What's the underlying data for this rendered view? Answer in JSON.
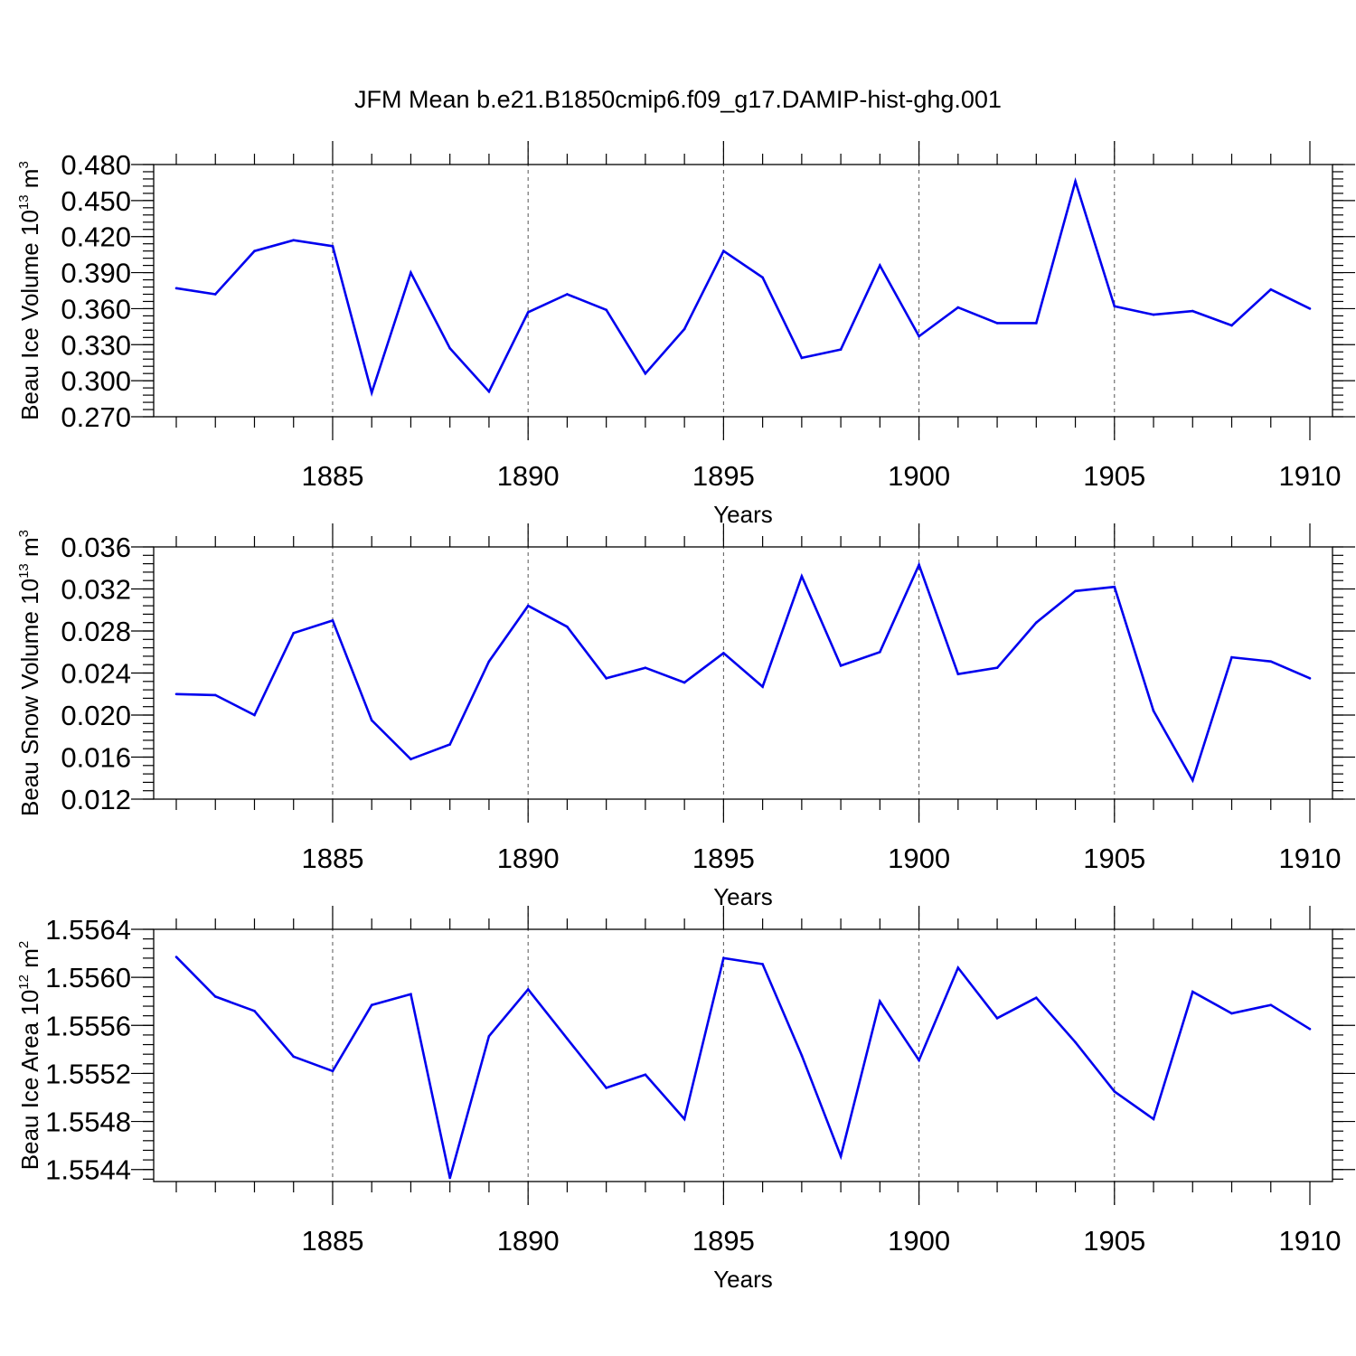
{
  "chart_data": {
    "type": "line",
    "title": "JFM Mean b.e21.B1850cmip6.f09_g17.DAMIP-hist-ghg.001",
    "colors": {
      "line": "#0000ee",
      "axis": "#000000",
      "grid": "#555555"
    },
    "x": [
      1881,
      1882,
      1883,
      1884,
      1885,
      1886,
      1887,
      1888,
      1889,
      1890,
      1891,
      1892,
      1893,
      1894,
      1895,
      1896,
      1897,
      1898,
      1899,
      1900,
      1901,
      1902,
      1903,
      1904,
      1905,
      1906,
      1907,
      1908,
      1909,
      1910
    ],
    "xlim": [
      1881,
      1910
    ],
    "xticks": [
      1885,
      1890,
      1895,
      1900,
      1905,
      1910
    ],
    "panels": [
      {
        "ylabel": "Beau Ice Volume 10",
        "ylabel_exp": "13",
        "ylabel_unit": "m",
        "ylabel_unit_exp": "3",
        "xlabel": "Years",
        "ylim": [
          0.27,
          0.48
        ],
        "yticks": [
          "0.270",
          "0.300",
          "0.330",
          "0.360",
          "0.390",
          "0.420",
          "0.450",
          "0.480"
        ],
        "values": [
          0.377,
          0.372,
          0.408,
          0.417,
          0.412,
          0.29,
          0.39,
          0.327,
          0.291,
          0.357,
          0.372,
          0.359,
          0.306,
          0.343,
          0.408,
          0.386,
          0.319,
          0.326,
          0.396,
          0.337,
          0.361,
          0.348,
          0.348,
          0.466,
          0.362,
          0.355,
          0.358,
          0.346,
          0.376,
          0.36
        ]
      },
      {
        "ylabel": "Beau Snow Volume 10",
        "ylabel_exp": "13",
        "ylabel_unit": "m",
        "ylabel_unit_exp": "3",
        "xlabel": "Years",
        "ylim": [
          0.012,
          0.036
        ],
        "yticks": [
          "0.012",
          "0.016",
          "0.020",
          "0.024",
          "0.028",
          "0.032",
          "0.036"
        ],
        "values": [
          0.022,
          0.0219,
          0.02,
          0.0278,
          0.029,
          0.0195,
          0.0158,
          0.0172,
          0.0251,
          0.0304,
          0.0284,
          0.0235,
          0.0245,
          0.0231,
          0.0259,
          0.0227,
          0.0332,
          0.0247,
          0.026,
          0.0343,
          0.0239,
          0.0245,
          0.0288,
          0.0318,
          0.0322,
          0.0204,
          0.0138,
          0.0255,
          0.0251,
          0.0235
        ]
      },
      {
        "ylabel": "Beau Ice Area 10",
        "ylabel_exp": "12",
        "ylabel_unit": "m",
        "ylabel_unit_exp": "2",
        "xlabel": "Years",
        "ylim": [
          1.5543,
          1.5564
        ],
        "yticks": [
          "1.5544",
          "1.5548",
          "1.5552",
          "1.5556",
          "1.5560",
          "1.5564"
        ],
        "values": [
          1.55617,
          1.55584,
          1.55572,
          1.55534,
          1.55522,
          1.55577,
          1.55586,
          1.55433,
          1.55551,
          1.5559,
          1.55549,
          1.55508,
          1.55519,
          1.55482,
          1.55616,
          1.55611,
          1.55535,
          1.55451,
          1.5558,
          1.55531,
          1.55608,
          1.55566,
          1.55583,
          1.55546,
          1.55505,
          1.55482,
          1.55588,
          1.5557,
          1.55577,
          1.55557
        ]
      }
    ]
  }
}
